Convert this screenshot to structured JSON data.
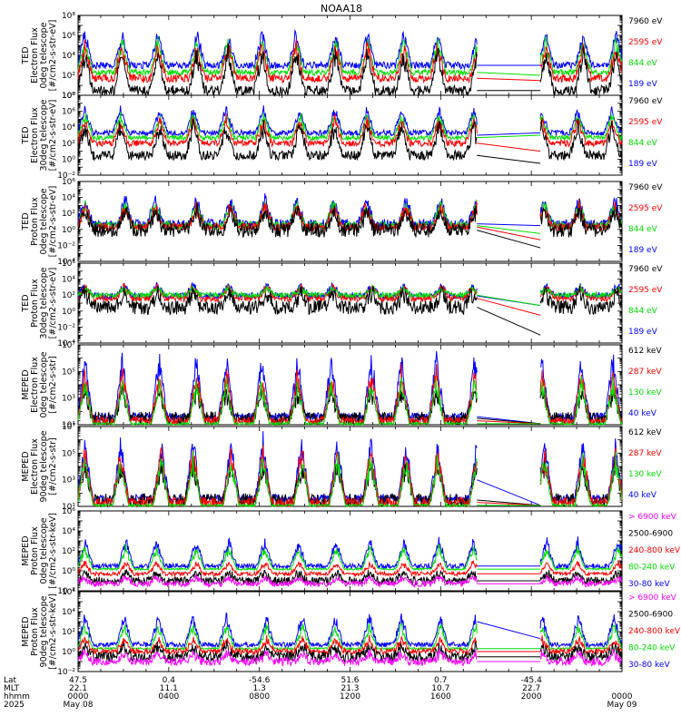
{
  "title": "NOAA18",
  "colors": {
    "black": "#000000",
    "red": "#ff0000",
    "green": "#00dd00",
    "blue": "#0000ff",
    "magenta": "#ff00ff",
    "axis": "#000000"
  },
  "chart_data": [
    {
      "type": "line",
      "ylabel": [
        "TED",
        "Electron Flux",
        "0deg telescope",
        "[#/cm2-s-str-eV]"
      ],
      "ylog": true,
      "ylim": [
        1,
        100000000.0
      ],
      "ticks": [
        1,
        100.0,
        10000.0,
        1000000.0,
        100000000.0
      ],
      "legend": [
        {
          "name": "7960 eV",
          "color": "black"
        },
        {
          "name": "2595 eV",
          "color": "red"
        },
        {
          "name": "844 eV",
          "color": "green"
        },
        {
          "name": "189 eV",
          "color": "blue"
        }
      ],
      "series": [
        {
          "color": "blue",
          "base": 1000.0,
          "peak": 5000000.0,
          "noise": 0.35
        },
        {
          "color": "green",
          "base": 200.0,
          "peak": 1000000.0,
          "noise": 0.3
        },
        {
          "color": "red",
          "base": 50,
          "peak": 300000.0,
          "noise": 0.4
        },
        {
          "color": "black",
          "base": 3,
          "peak": 100000.0,
          "noise": 0.5
        }
      ],
      "gapEnd": [
        [
          1000.0,
          1000.0
        ],
        [
          200.0,
          100.0
        ],
        [
          50,
          30
        ],
        [
          3,
          3
        ]
      ]
    },
    {
      "type": "line",
      "ylabel": [
        "TED",
        "Electron Flux",
        "30deg telescope",
        "[#/cm2-s-str-eV]"
      ],
      "ylog": true,
      "ylim": [
        0.01,
        100000000.0
      ],
      "ticks": [
        0.01,
        1,
        100.0,
        10000.0,
        1000000.0,
        100000000.0
      ],
      "legend": [
        {
          "name": "7960 eV",
          "color": "black"
        },
        {
          "name": "2595 eV",
          "color": "red"
        },
        {
          "name": "844 eV",
          "color": "green"
        },
        {
          "name": "189 eV",
          "color": "blue"
        }
      ],
      "series": [
        {
          "color": "blue",
          "base": 2000.0,
          "peak": 5000000.0,
          "noise": 0.35
        },
        {
          "color": "green",
          "base": 500.0,
          "peak": 1000000.0,
          "noise": 0.3
        },
        {
          "color": "red",
          "base": 100.0,
          "peak": 300000.0,
          "noise": 0.4
        },
        {
          "color": "black",
          "base": 3,
          "peak": 100000.0,
          "noise": 0.6
        }
      ],
      "gapEnd": [
        [
          1000.0,
          2000.0
        ],
        [
          500.0,
          1000.0
        ],
        [
          100.0,
          10.0
        ],
        [
          3,
          0.3
        ]
      ]
    },
    {
      "type": "line",
      "ylabel": [
        "TED",
        "Proton Flux",
        "0deg telescope",
        "[#/cm2-s-str-eV]"
      ],
      "ylog": true,
      "ylim": [
        0.0001,
        1000000.0
      ],
      "ticks": [
        0.0001,
        0.01,
        1,
        100.0,
        10000.0,
        1000000.0
      ],
      "legend": [
        {
          "name": "7960 eV",
          "color": "black"
        },
        {
          "name": "2595 eV",
          "color": "red"
        },
        {
          "name": "844 eV",
          "color": "green"
        },
        {
          "name": "189 eV",
          "color": "blue"
        }
      ],
      "series": [
        {
          "color": "blue",
          "base": 5,
          "peak": 20000.0,
          "noise": 0.6
        },
        {
          "color": "green",
          "base": 3,
          "peak": 5000.0,
          "noise": 0.5
        },
        {
          "color": "red",
          "base": 2,
          "peak": 3000.0,
          "noise": 0.5
        },
        {
          "color": "black",
          "base": 0.8,
          "peak": 1000.0,
          "noise": 0.9
        }
      ],
      "gapEnd": [
        [
          5,
          3
        ],
        [
          3,
          0.3
        ],
        [
          2,
          0.05
        ],
        [
          0.8,
          0.005
        ]
      ]
    },
    {
      "type": "line",
      "ylabel": [
        "TED",
        "Proton Flux",
        "30deg telescope",
        "[#/cm2-s-str-eV]"
      ],
      "ylog": true,
      "ylim": [
        0.0001,
        1000000.0
      ],
      "ticks": [
        0.0001,
        0.01,
        1,
        100.0,
        10000.0,
        1000000.0
      ],
      "legend": [
        {
          "name": "7960 eV",
          "color": "black"
        },
        {
          "name": "2595 eV",
          "color": "red"
        },
        {
          "name": "844 eV",
          "color": "green"
        },
        {
          "name": "189 eV",
          "color": "blue"
        }
      ],
      "series": [
        {
          "color": "blue",
          "base": 80,
          "peak": 3000.0,
          "noise": 0.4
        },
        {
          "color": "red",
          "base": 40,
          "peak": 2000.0,
          "noise": 0.4
        },
        {
          "color": "green",
          "base": 100,
          "peak": 1000.0,
          "noise": 0.35
        },
        {
          "color": "black",
          "base": 3,
          "peak": 500.0,
          "noise": 0.9
        }
      ],
      "gapEnd": [
        [
          80,
          5
        ],
        [
          40,
          0.3
        ],
        [
          100,
          5
        ],
        [
          3,
          0.001
        ]
      ]
    },
    {
      "type": "line",
      "ylabel": [
        "MEPED",
        "Electron Flux",
        "0deg telescope",
        "[#/cm2-s-str]"
      ],
      "ylog": true,
      "ylim": [
        10.0,
        10000000.0
      ],
      "ticks": [
        10.0,
        1000.0,
        100000.0,
        10000000.0
      ],
      "legend": [
        {
          "name": "612 keV",
          "color": "black"
        },
        {
          "name": "287 keV",
          "color": "red"
        },
        {
          "name": "130 keV",
          "color": "green"
        },
        {
          "name": "40 keV",
          "color": "blue"
        }
      ],
      "series": [
        {
          "color": "blue",
          "base": 40,
          "peak": 5000000.0,
          "noise": 0.3
        },
        {
          "color": "black",
          "base": 30,
          "peak": 10000.0,
          "noise": 0.5
        },
        {
          "color": "red",
          "base": 20,
          "peak": 300000.0,
          "noise": 0.3
        },
        {
          "color": "green",
          "base": 12,
          "peak": 50000.0,
          "noise": 0.1
        }
      ],
      "gapEnd": [
        [
          40,
          12
        ],
        [
          30,
          12
        ],
        [
          20,
          12
        ],
        [
          12,
          12
        ]
      ]
    },
    {
      "type": "line",
      "ylabel": [
        "MEPED",
        "Electron Flux",
        "90deg telescope",
        "[#/cm2-s-str]"
      ],
      "ylog": true,
      "ylim": [
        10.0,
        10000000.0
      ],
      "ticks": [
        10.0,
        1000.0,
        100000.0,
        10000000.0
      ],
      "legend": [
        {
          "name": "612 keV",
          "color": "black"
        },
        {
          "name": "287 keV",
          "color": "red"
        },
        {
          "name": "130 keV",
          "color": "green"
        },
        {
          "name": "40 keV",
          "color": "blue"
        }
      ],
      "series": [
        {
          "color": "blue",
          "base": 40,
          "peak": 3000000.0,
          "noise": 0.3
        },
        {
          "color": "black",
          "base": 30,
          "peak": 50000.0,
          "noise": 0.5
        },
        {
          "color": "red",
          "base": 20,
          "peak": 500000.0,
          "noise": 0.4
        },
        {
          "color": "green",
          "base": 12,
          "peak": 200000.0,
          "noise": 0.1
        }
      ],
      "gapEnd": [
        [
          1000.0,
          12
        ],
        [
          30,
          12
        ],
        [
          20,
          12
        ],
        [
          12,
          12
        ]
      ]
    },
    {
      "type": "line",
      "ylabel": [
        "MEPED",
        "Proton Flux",
        "0deg telescope",
        "[#/cm2-s-str-keV]"
      ],
      "ylog": true,
      "ylim": [
        0.01,
        1000000.0
      ],
      "ticks": [
        0.01,
        1,
        100.0,
        10000.0,
        1000000.0
      ],
      "legend": [
        {
          "name": "> 6900 keV",
          "color": "magenta"
        },
        {
          "name": "2500-6900",
          "color": "black"
        },
        {
          "name": "240-800 keV",
          "color": "red"
        },
        {
          "name": "80-240 keV",
          "color": "green"
        },
        {
          "name": "30-80 keV",
          "color": "blue"
        }
      ],
      "series": [
        {
          "color": "blue",
          "base": 3,
          "peak": 3000.0,
          "noise": 0.25
        },
        {
          "color": "green",
          "base": 1.5,
          "peak": 500.0,
          "noise": 0.1
        },
        {
          "color": "red",
          "base": 0.5,
          "peak": 10,
          "noise": 0.2
        },
        {
          "color": "black",
          "base": 0.1,
          "peak": 1,
          "noise": 0.4
        },
        {
          "color": "magenta",
          "base": 0.05,
          "peak": 0.3,
          "noise": 0.3
        }
      ],
      "gapEnd": [
        [
          3,
          3
        ],
        [
          1.5,
          1.5
        ],
        [
          0.5,
          0.5
        ],
        [
          0.1,
          0.1
        ],
        [
          0.05,
          0.05
        ]
      ]
    },
    {
      "type": "line",
      "ylabel": [
        "MEPED",
        "Proton Flux",
        "90deg telescope",
        "[#/cm2-s-str-keV]"
      ],
      "ylog": true,
      "ylim": [
        0.01,
        1000000.0
      ],
      "ticks": [
        0.01,
        1,
        100.0,
        10000.0,
        1000000.0
      ],
      "legend": [
        {
          "name": "> 6900 keV",
          "color": "magenta"
        },
        {
          "name": "2500-6900",
          "color": "black"
        },
        {
          "name": "240-800 keV",
          "color": "red"
        },
        {
          "name": "80-240 keV",
          "color": "green"
        },
        {
          "name": "30-80 keV",
          "color": "blue"
        }
      ],
      "series": [
        {
          "color": "blue",
          "base": 5,
          "peak": 10000.0,
          "noise": 0.25
        },
        {
          "color": "green",
          "base": 2,
          "peak": 1000.0,
          "noise": 0.1
        },
        {
          "color": "red",
          "base": 1,
          "peak": 30,
          "noise": 0.3
        },
        {
          "color": "black",
          "base": 0.3,
          "peak": 5,
          "noise": 0.5
        },
        {
          "color": "magenta",
          "base": 0.1,
          "peak": 1,
          "noise": 0.4
        }
      ],
      "gapEnd": [
        [
          1000.0,
          20
        ],
        [
          2,
          2
        ],
        [
          1,
          1
        ],
        [
          0.3,
          0.3
        ],
        [
          0.1,
          0.1
        ]
      ]
    }
  ],
  "x_axis": {
    "row_labels": [
      "Lat",
      "MLT",
      "hhmm",
      "2025"
    ],
    "ticks": [
      {
        "hour": 0,
        "lat": "47.5",
        "mlt": "22.1",
        "hhmm": "0000",
        "date": "May 08"
      },
      {
        "hour": 4,
        "lat": "0.4",
        "mlt": "11.1",
        "hhmm": "0400",
        "date": ""
      },
      {
        "hour": 8,
        "lat": "-54.6",
        "mlt": "1.3",
        "hhmm": "0800",
        "date": ""
      },
      {
        "hour": 12,
        "lat": "51.6",
        "mlt": "21.3",
        "hhmm": "1200",
        "date": ""
      },
      {
        "hour": 16,
        "lat": "0.7",
        "mlt": "10.7",
        "hhmm": "1600",
        "date": ""
      },
      {
        "hour": 20,
        "lat": "-45.4",
        "mlt": "22.7",
        "hhmm": "2000",
        "date": ""
      },
      {
        "hour": 24,
        "lat": "",
        "mlt": "",
        "hhmm": "0000",
        "date": "May 09"
      }
    ],
    "data_gap_hours": [
      17.6,
      20.4
    ]
  }
}
